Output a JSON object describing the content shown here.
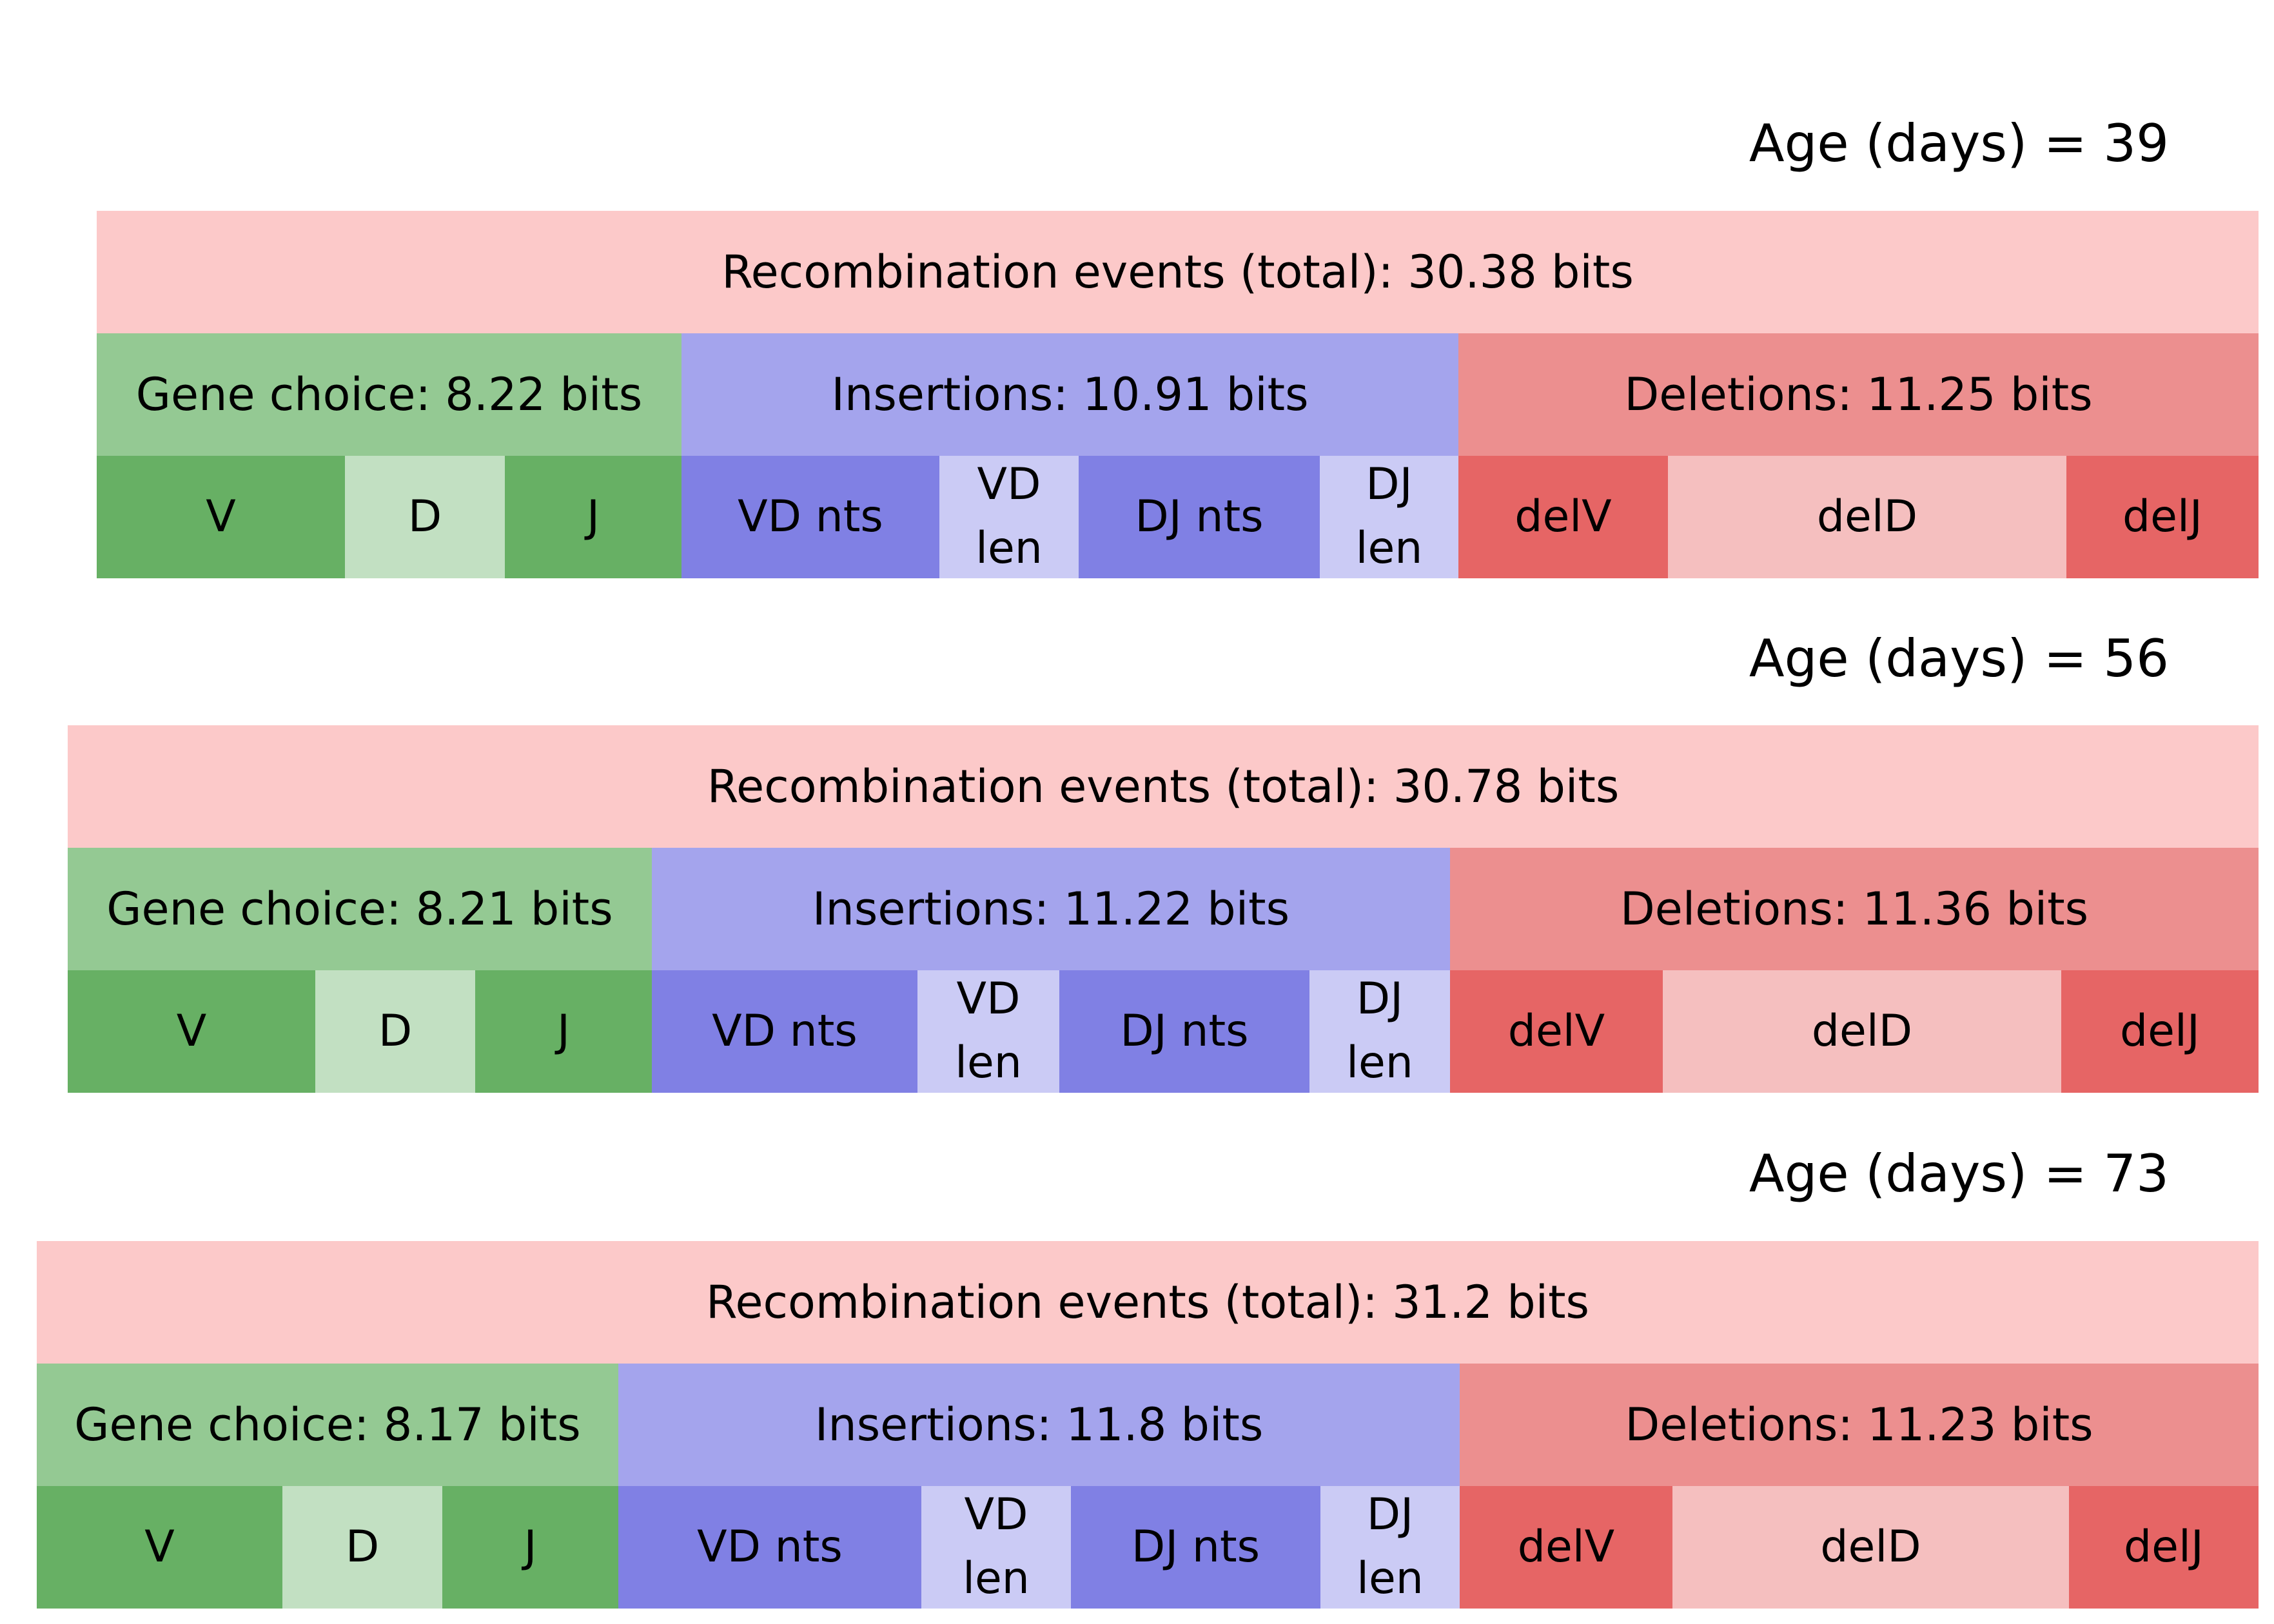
{
  "panels": [
    {
      "age_label": "Age (days) = 39",
      "total_label": "Recombination events (total): 30.38 bits",
      "gene_label": "Gene choice: 8.22 bits",
      "insertions_label": "Insertions: 10.91 bits",
      "deletions_label": "Deletions: 11.25 bits",
      "gene_sub": [
        "V",
        "D",
        "J"
      ],
      "ins_sub": [
        "VD nts",
        "VD\nlen",
        "DJ nts",
        "DJ\nlen"
      ],
      "del_sub": [
        "delV",
        "delD",
        "delJ"
      ]
    },
    {
      "age_label": "Age (days) = 56",
      "total_label": "Recombination events (total): 30.78 bits",
      "gene_label": "Gene choice: 8.21 bits",
      "insertions_label": "Insertions: 11.22 bits",
      "deletions_label": "Deletions: 11.36 bits",
      "gene_sub": [
        "V",
        "D",
        "J"
      ],
      "ins_sub": [
        "VD nts",
        "VD\nlen",
        "DJ nts",
        "DJ\nlen"
      ],
      "del_sub": [
        "delV",
        "delD",
        "delJ"
      ]
    },
    {
      "age_label": "Age (days) = 73",
      "total_label": "Recombination events (total): 31.2 bits",
      "gene_label": "Gene choice: 8.17 bits",
      "insertions_label": "Insertions: 11.8 bits",
      "deletions_label": "Deletions: 11.23 bits",
      "gene_sub": [
        "V",
        "D",
        "J"
      ],
      "ins_sub": [
        "VD nts",
        "VD\nlen",
        "DJ nts",
        "DJ\nlen"
      ],
      "del_sub": [
        "delV",
        "delD",
        "delJ"
      ]
    }
  ],
  "colors": {
    "total": "#fcc9c9",
    "gene_choice": "#94c993",
    "insertions": "#a4a4ed",
    "deletions": "#ec8f8f"
  }
}
